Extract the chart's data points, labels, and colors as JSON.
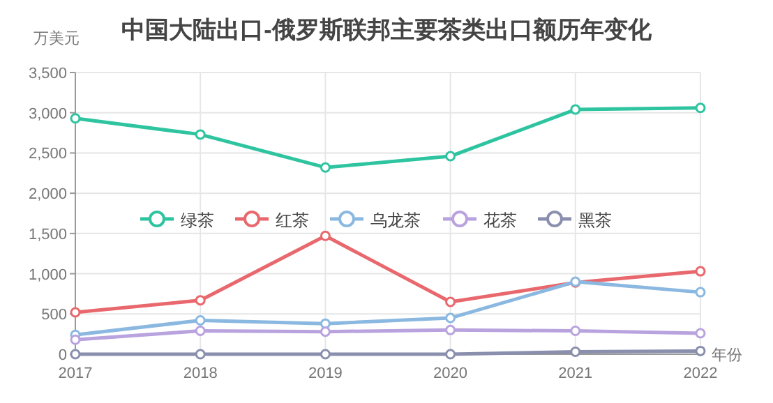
{
  "chart_data": {
    "type": "line",
    "title": "中国大陆出口-俄罗斯联邦主要茶类出口额历年变化",
    "ylabel": "万美元",
    "xlabel": "年份",
    "categories": [
      "2017",
      "2018",
      "2019",
      "2020",
      "2021",
      "2022"
    ],
    "ylim": [
      0,
      3500
    ],
    "yticks": [
      {
        "value": 0,
        "label": "0"
      },
      {
        "value": 500,
        "label": "500"
      },
      {
        "value": 1000,
        "label": "1,000"
      },
      {
        "value": 1500,
        "label": "1,500"
      },
      {
        "value": 2000,
        "label": "2,000"
      },
      {
        "value": 2500,
        "label": "2,500"
      },
      {
        "value": 3000,
        "label": "3,000"
      },
      {
        "value": 3500,
        "label": "3,500"
      }
    ],
    "grid": true,
    "legend": "center",
    "marker": "circle",
    "line_style": "solid",
    "series": [
      {
        "name": "绿茶",
        "color": "#2ec4a0",
        "values": [
          2930,
          2730,
          2320,
          2460,
          3040,
          3060
        ]
      },
      {
        "name": "红茶",
        "color": "#e8686d",
        "values": [
          520,
          670,
          1470,
          650,
          890,
          1030
        ]
      },
      {
        "name": "乌龙茶",
        "color": "#8bb8e0",
        "values": [
          240,
          420,
          380,
          450,
          900,
          770
        ]
      },
      {
        "name": "花茶",
        "color": "#b9a3df",
        "values": [
          180,
          290,
          280,
          300,
          290,
          260
        ]
      },
      {
        "name": "黑茶",
        "color": "#8a8fae",
        "values": [
          0,
          0,
          0,
          0,
          30,
          40
        ]
      }
    ]
  }
}
